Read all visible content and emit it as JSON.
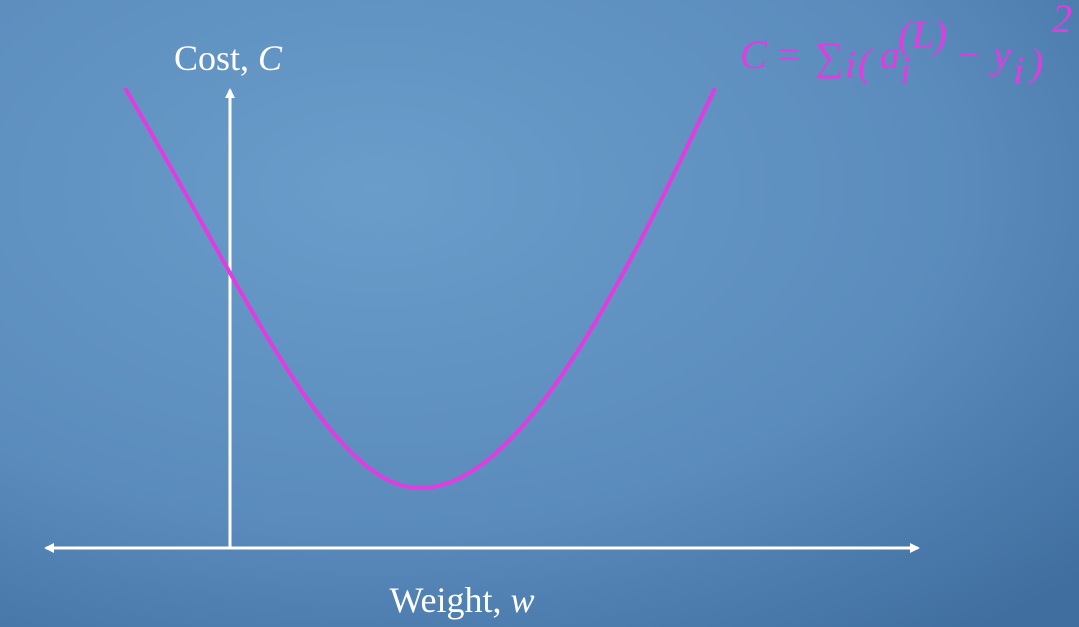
{
  "y_axis": {
    "label": "Cost,",
    "variable": "C"
  },
  "x_axis": {
    "label": "Weight,",
    "variable": "w"
  },
  "formula": {
    "lhs": "C",
    "equals": "=",
    "sum": "∑",
    "sum_index": "i",
    "open": "(",
    "a": "a",
    "a_index": "i",
    "a_superscript": "(L)",
    "minus": "−",
    "y": "y",
    "y_index": "i",
    "close": ")",
    "exponent": "2"
  }
}
